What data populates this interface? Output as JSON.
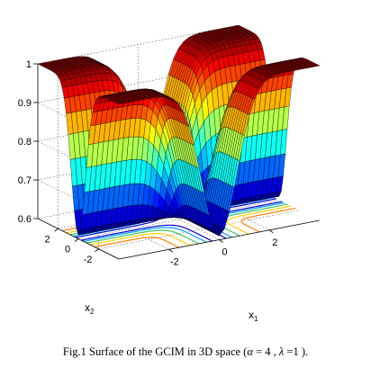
{
  "caption": {
    "prefix": "Fig.1 Surface of the GCIM in 3D space (",
    "alpha_symbol": "α",
    "alpha_value": " = 4 , ",
    "lambda_symbol": "λ",
    "lambda_value": " =1 ).",
    "full": "Fig.1 Surface of the GCIM in 3D space ( α = 4 , λ =1 )."
  },
  "chart_data": {
    "type": "surface",
    "title": "",
    "xlabel": "x1",
    "ylabel": "x2",
    "zlabel": "",
    "xlim": [
      -4,
      4
    ],
    "ylim": [
      -4,
      4
    ],
    "zlim": [
      0.6,
      1.0
    ],
    "x_ticks": [
      "-2",
      "0",
      "2"
    ],
    "y_ticks": [
      "-2",
      "0",
      "2"
    ],
    "z_ticks": [
      "0.6",
      "0.7",
      "0.8",
      "0.9",
      "1"
    ],
    "x_tick_values": [
      -2,
      0,
      2
    ],
    "y_tick_values": [
      -2,
      0,
      2
    ],
    "z_tick_values": [
      0.6,
      0.7,
      0.8,
      0.9,
      1.0
    ],
    "params": {
      "alpha": 4,
      "lambda": 1
    },
    "surface_min": 0.61,
    "surface_max": 1.0,
    "contour_levels": [
      0.64,
      0.7,
      0.8,
      0.9,
      0.97
    ],
    "contour_colors": [
      "#0000cc",
      "#00a0ff",
      "#40c060",
      "#ffd000",
      "#ff8000",
      "#e02020"
    ],
    "grid": true,
    "colormap": "jet"
  }
}
